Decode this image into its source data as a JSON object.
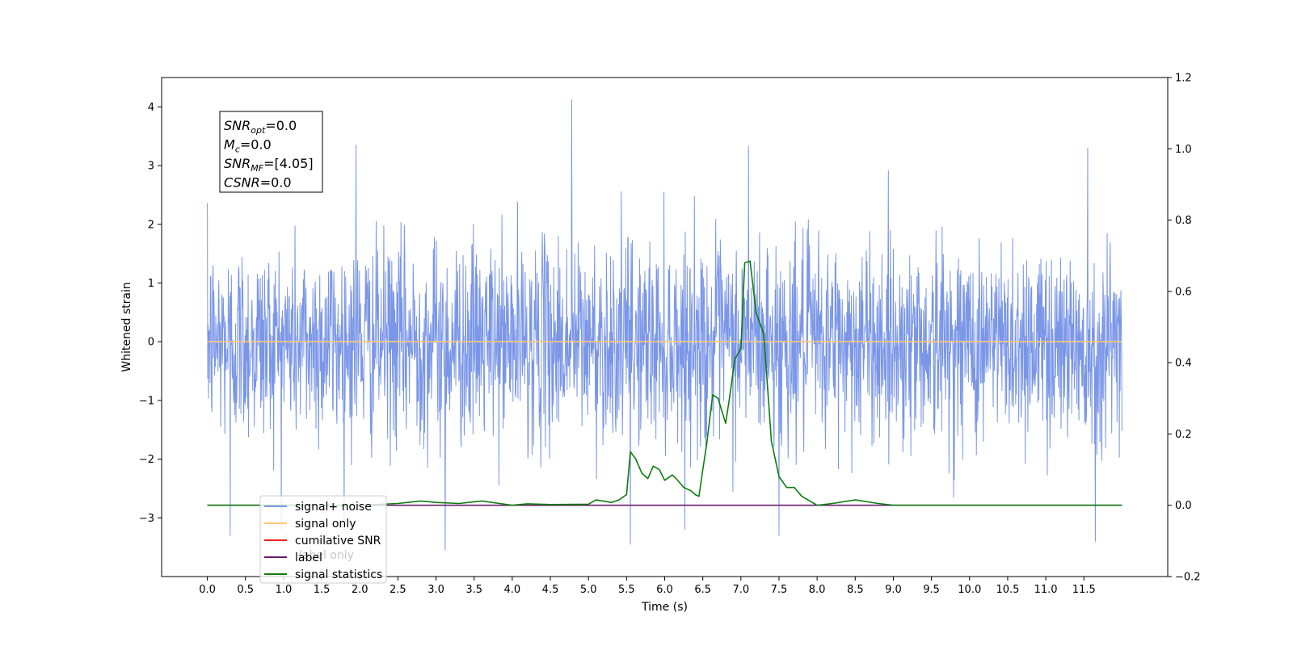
{
  "chart_data": {
    "type": "line",
    "xlabel": "Time (s)",
    "ylabel": "Whitened strain",
    "xlim": [
      -0.6,
      12.6
    ],
    "ylim": [
      -4,
      4.5
    ],
    "y2lim": [
      -0.2,
      1.2
    ],
    "xticks": [
      0.0,
      0.5,
      1.0,
      1.5,
      2.0,
      2.5,
      3.0,
      3.5,
      4.0,
      4.5,
      5.0,
      5.5,
      6.0,
      6.5,
      7.0,
      7.5,
      8.0,
      8.5,
      9.0,
      9.5,
      10.0,
      10.5,
      11.0,
      11.5
    ],
    "xtick_labels": [
      "0.0",
      "0.5",
      "1.0",
      "1.5",
      "2.0",
      "2.5",
      "3.0",
      "3.5",
      "4.0",
      "4.5",
      "5.0",
      "5.5",
      "6.0",
      "6.5",
      "7.0",
      "7.5",
      "8.0",
      "8.5",
      "9.0",
      "9.5",
      "10.0",
      "10.5",
      "11.0",
      "11.5"
    ],
    "yticks": [
      -3,
      -2,
      -1,
      0,
      1,
      2,
      3,
      4
    ],
    "ytick_labels": [
      "−3",
      "−2",
      "−1",
      "0",
      "1",
      "2",
      "3",
      "4"
    ],
    "y2ticks": [
      -0.2,
      0.0,
      0.2,
      0.4,
      0.6,
      0.8,
      1.0,
      1.2
    ],
    "y2tick_labels": [
      "−0.2",
      "0.0",
      "0.2",
      "0.4",
      "0.6",
      "0.8",
      "1.0",
      "1.2"
    ],
    "legend": {
      "placement": "lower-left",
      "entries": [
        {
          "label": "signal+ noise",
          "color": "#7a96e8"
        },
        {
          "label": "signal only",
          "color": "#ffc878"
        },
        {
          "label": "cumilative SNR",
          "color": "#e8201c"
        },
        {
          "label": "label",
          "color": "#6b1a6b"
        },
        {
          "label": "signal statistics",
          "color": "#0d7d0d"
        }
      ],
      "overlap_text": "label only"
    },
    "stats_box": {
      "lines": [
        {
          "sym": "SNR",
          "sub": "opt",
          "val": "=0.0"
        },
        {
          "sym": "M",
          "sub": "c",
          "val": "=0.0"
        },
        {
          "sym": "SNR",
          "sub": "MF",
          "val": "=[4.05]"
        },
        {
          "sym": "CSNR",
          "sub": "",
          "val": "=0.0"
        }
      ]
    },
    "series": [
      {
        "name": "signal+ noise",
        "color": "#7a96e8",
        "axis": "left",
        "x_range": [
          0.0,
          12.0
        ],
        "amplitude_sigma": 1.0,
        "notable_peaks": [
          {
            "x": 4.78,
            "y": 4.12
          },
          {
            "x": 7.1,
            "y": 3.33
          },
          {
            "x": 5.55,
            "y": -3.45
          },
          {
            "x": 3.12,
            "y": -3.55
          },
          {
            "x": 11.65,
            "y": -3.4
          },
          {
            "x": 0.3,
            "y": -3.3
          },
          {
            "x": 7.5,
            "y": -3.3
          },
          {
            "x": 11.55,
            "y": 3.3
          },
          {
            "x": 1.95,
            "y": 3.35
          }
        ]
      },
      {
        "name": "signal only",
        "color": "#ffc878",
        "axis": "left",
        "x": [
          0.0,
          12.0
        ],
        "y": [
          0.0,
          0.0
        ]
      },
      {
        "name": "label",
        "color": "#6b1a6b",
        "axis": "right",
        "x": [
          0.0,
          12.0
        ],
        "y": [
          0.0,
          0.0
        ]
      },
      {
        "name": "signal statistics",
        "color": "#0d7d0d",
        "axis": "right",
        "x": [
          0.0,
          2.0,
          2.5,
          2.8,
          3.0,
          3.3,
          3.6,
          3.9,
          4.0,
          4.2,
          4.5,
          5.0,
          5.1,
          5.3,
          5.4,
          5.5,
          5.55,
          5.62,
          5.7,
          5.78,
          5.85,
          5.93,
          6.0,
          6.1,
          6.15,
          6.25,
          6.35,
          6.4,
          6.45,
          6.5,
          6.55,
          6.63,
          6.7,
          6.8,
          6.85,
          6.92,
          7.0,
          7.05,
          7.12,
          7.2,
          7.3,
          7.4,
          7.5,
          7.6,
          7.7,
          7.8,
          8.0,
          8.2,
          8.5,
          8.8,
          9.0,
          12.0
        ],
        "y": [
          0.0,
          0.0,
          0.005,
          0.012,
          0.008,
          0.005,
          0.012,
          0.003,
          0.0,
          0.004,
          0.002,
          0.003,
          0.015,
          0.008,
          0.015,
          0.03,
          0.15,
          0.13,
          0.09,
          0.075,
          0.11,
          0.1,
          0.07,
          0.085,
          0.075,
          0.05,
          0.04,
          0.03,
          0.025,
          0.1,
          0.17,
          0.31,
          0.3,
          0.23,
          0.3,
          0.41,
          0.44,
          0.68,
          0.685,
          0.54,
          0.48,
          0.18,
          0.08,
          0.05,
          0.05,
          0.025,
          0.0,
          0.005,
          0.015,
          0.005,
          0.0,
          0.0
        ]
      }
    ]
  }
}
